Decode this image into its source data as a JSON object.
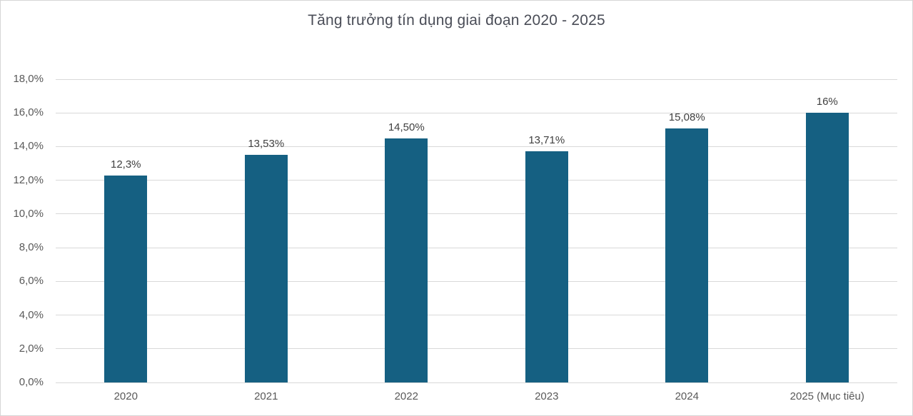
{
  "chart_data": {
    "type": "bar",
    "title": "Tăng trưởng tín dụng giai đoạn 2020 - 2025",
    "categories": [
      "2020",
      "2021",
      "2022",
      "2023",
      "2024",
      "2025 (Mục tiêu)"
    ],
    "values": [
      12.3,
      13.53,
      14.5,
      13.71,
      15.08,
      16
    ],
    "data_labels": [
      "12,3%",
      "13,53%",
      "14,50%",
      "13,71%",
      "15,08%",
      "16%"
    ],
    "ylim": [
      0,
      18
    ],
    "ytick_step": 2,
    "ytick_labels": [
      "0,0%",
      "2,0%",
      "4,0%",
      "6,0%",
      "8,0%",
      "10,0%",
      "12,0%",
      "14,0%",
      "16,0%",
      "18,0%"
    ],
    "grid": true,
    "legend": "none",
    "colors": {
      "bar": "#156082",
      "gridline": "#d9d9d9",
      "title": "#4a4d57",
      "axis_label": "#595959",
      "data_label": "#404040"
    }
  }
}
